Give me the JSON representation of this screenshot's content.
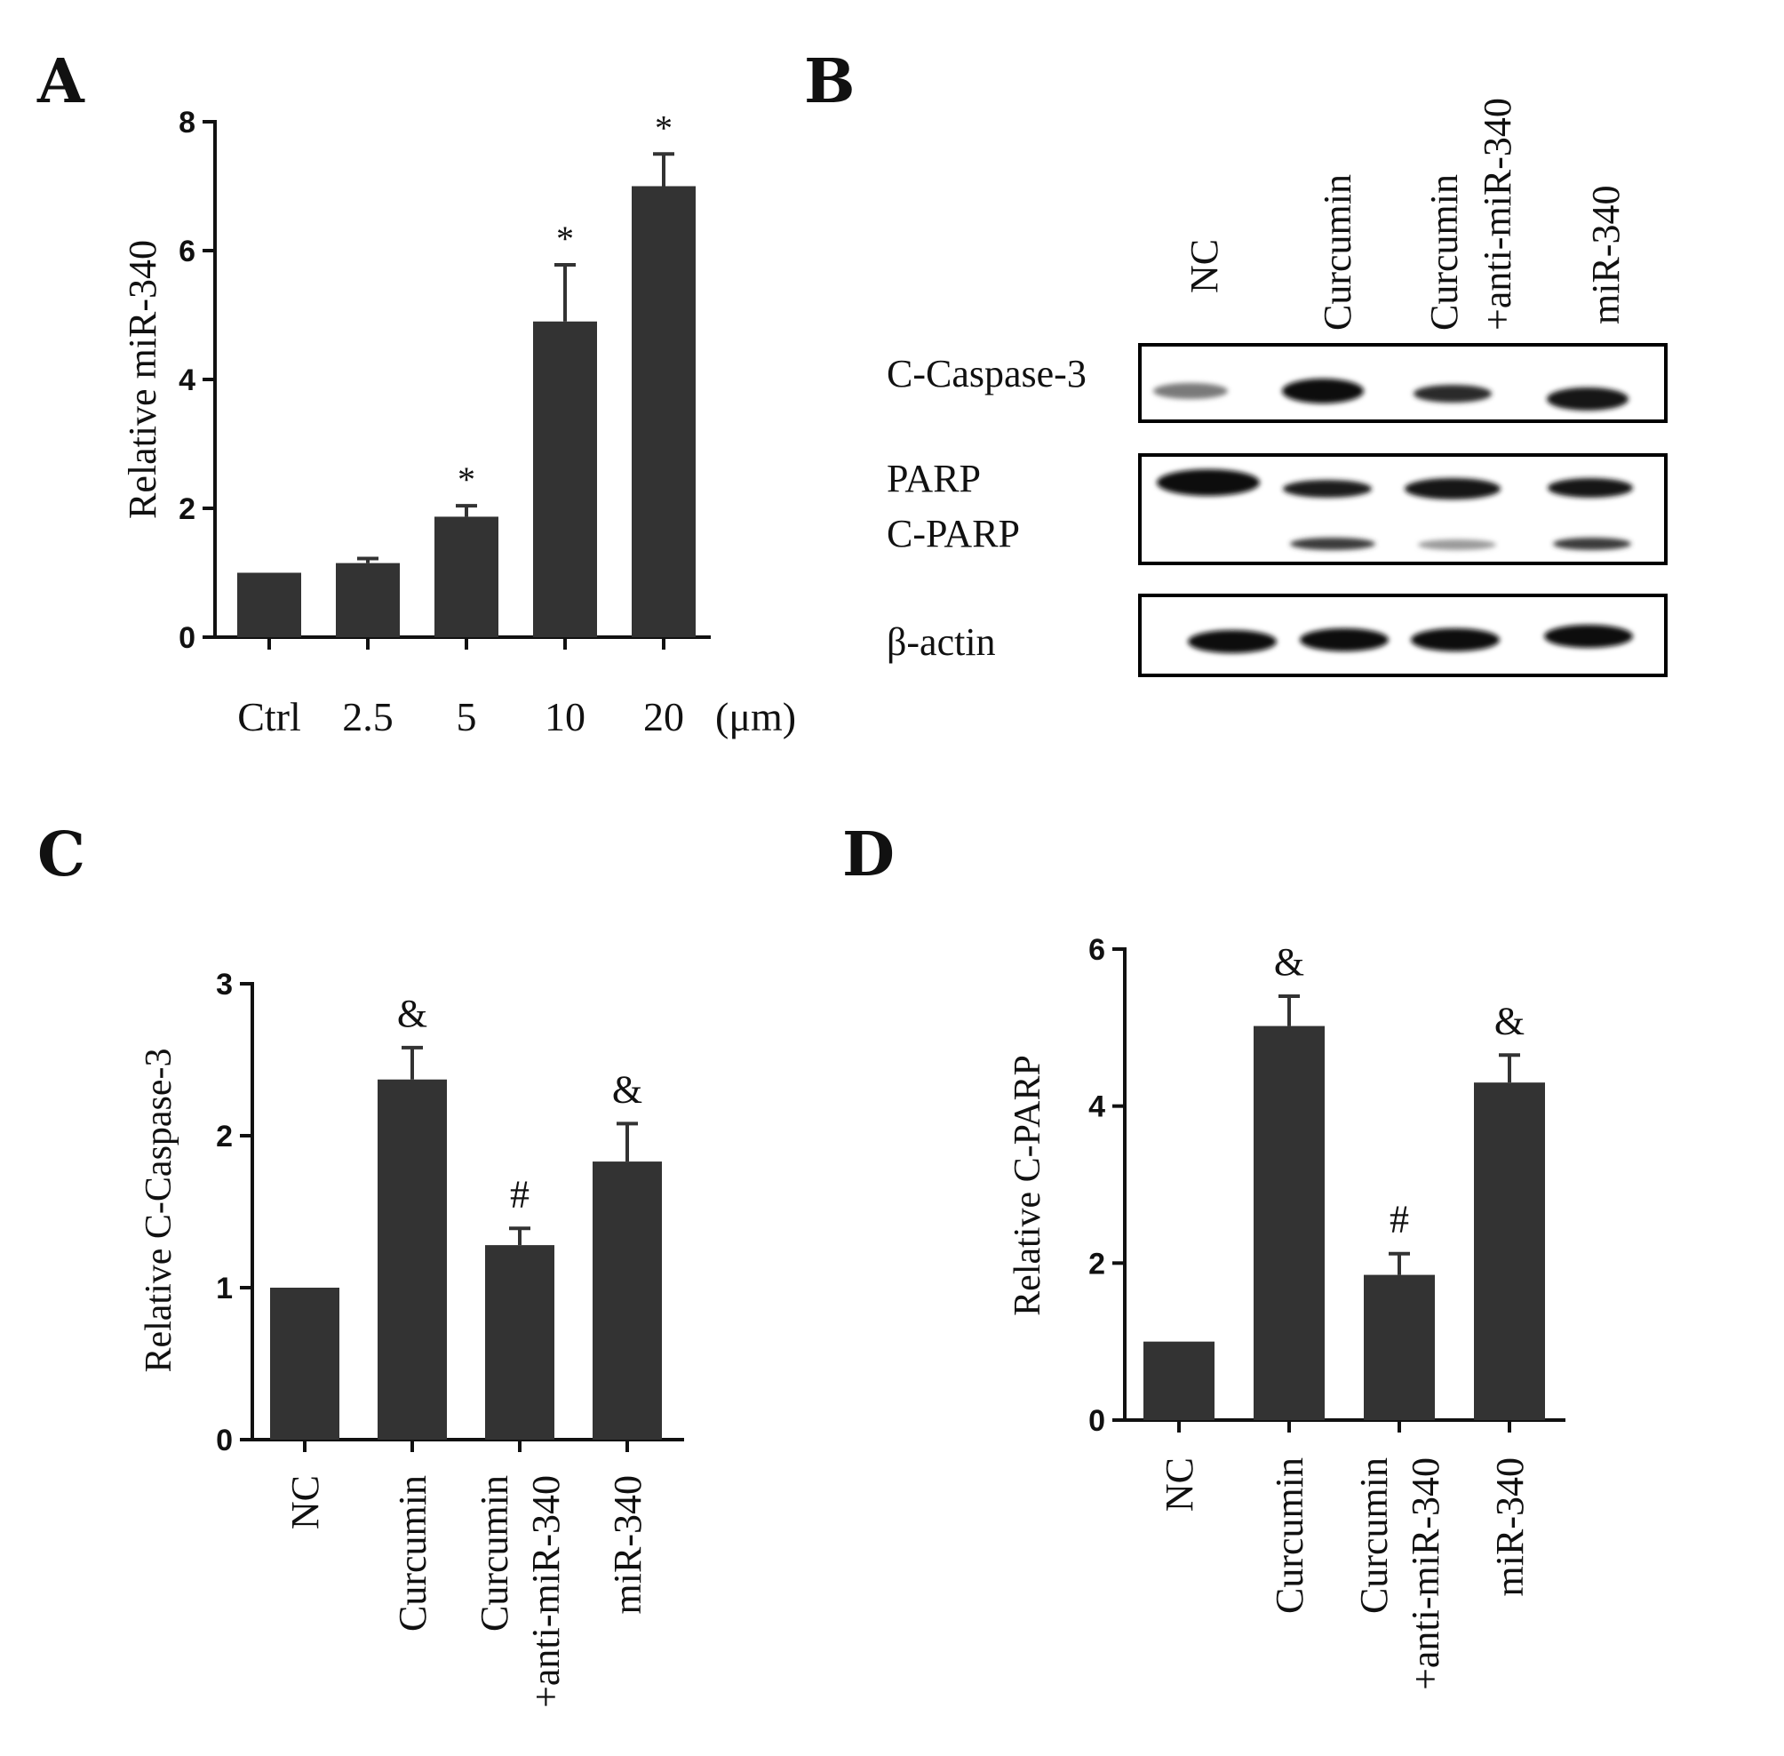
{
  "panels": {
    "a": "A",
    "b": "B",
    "c": "C",
    "d": "D"
  },
  "blot": {
    "lanes": [
      "NC",
      "Curcumin",
      "Curcumin\n+anti-miR-340",
      "miR-340"
    ],
    "rows": [
      "C-Caspase-3",
      "PARP",
      "C-PARP",
      "β-actin"
    ]
  },
  "chart_data": [
    {
      "panel": "A",
      "type": "bar",
      "categories": [
        "Ctrl",
        "2.5",
        "5",
        "10",
        "20"
      ],
      "unit_label": "(μm)",
      "values": [
        1.0,
        1.15,
        1.87,
        4.9,
        7.0
      ],
      "errors": [
        0,
        0.07,
        0.17,
        0.88,
        0.5
      ],
      "annotations": [
        "",
        "",
        "*",
        "*",
        "*"
      ],
      "ylabel": "Relative miR-340",
      "ylim": [
        0,
        8
      ],
      "yticks": [
        0,
        2,
        4,
        6,
        8
      ],
      "color": "#333333"
    },
    {
      "panel": "C",
      "type": "bar",
      "categories": [
        "NC",
        "Curcumin",
        "Curcumin\n+anti-miR-340",
        "miR-340"
      ],
      "values": [
        1.0,
        2.37,
        1.28,
        1.83
      ],
      "errors": [
        0,
        0.21,
        0.11,
        0.25
      ],
      "annotations": [
        "",
        "&",
        "#",
        "&"
      ],
      "ylabel": "Relative C-Caspase-3",
      "ylim": [
        0,
        3
      ],
      "yticks": [
        0,
        1,
        2,
        3
      ],
      "color": "#333333"
    },
    {
      "panel": "D",
      "type": "bar",
      "categories": [
        "NC",
        "Curcumin",
        "Curcumin\n+anti-miR-340",
        "miR-340"
      ],
      "values": [
        1.0,
        5.02,
        1.85,
        4.3
      ],
      "errors": [
        0,
        0.38,
        0.27,
        0.35
      ],
      "annotations": [
        "",
        "&",
        "#",
        "&"
      ],
      "ylabel": "Relative C-PARP",
      "ylim": [
        0,
        6
      ],
      "yticks": [
        0,
        2,
        4,
        6
      ],
      "color": "#333333"
    }
  ]
}
